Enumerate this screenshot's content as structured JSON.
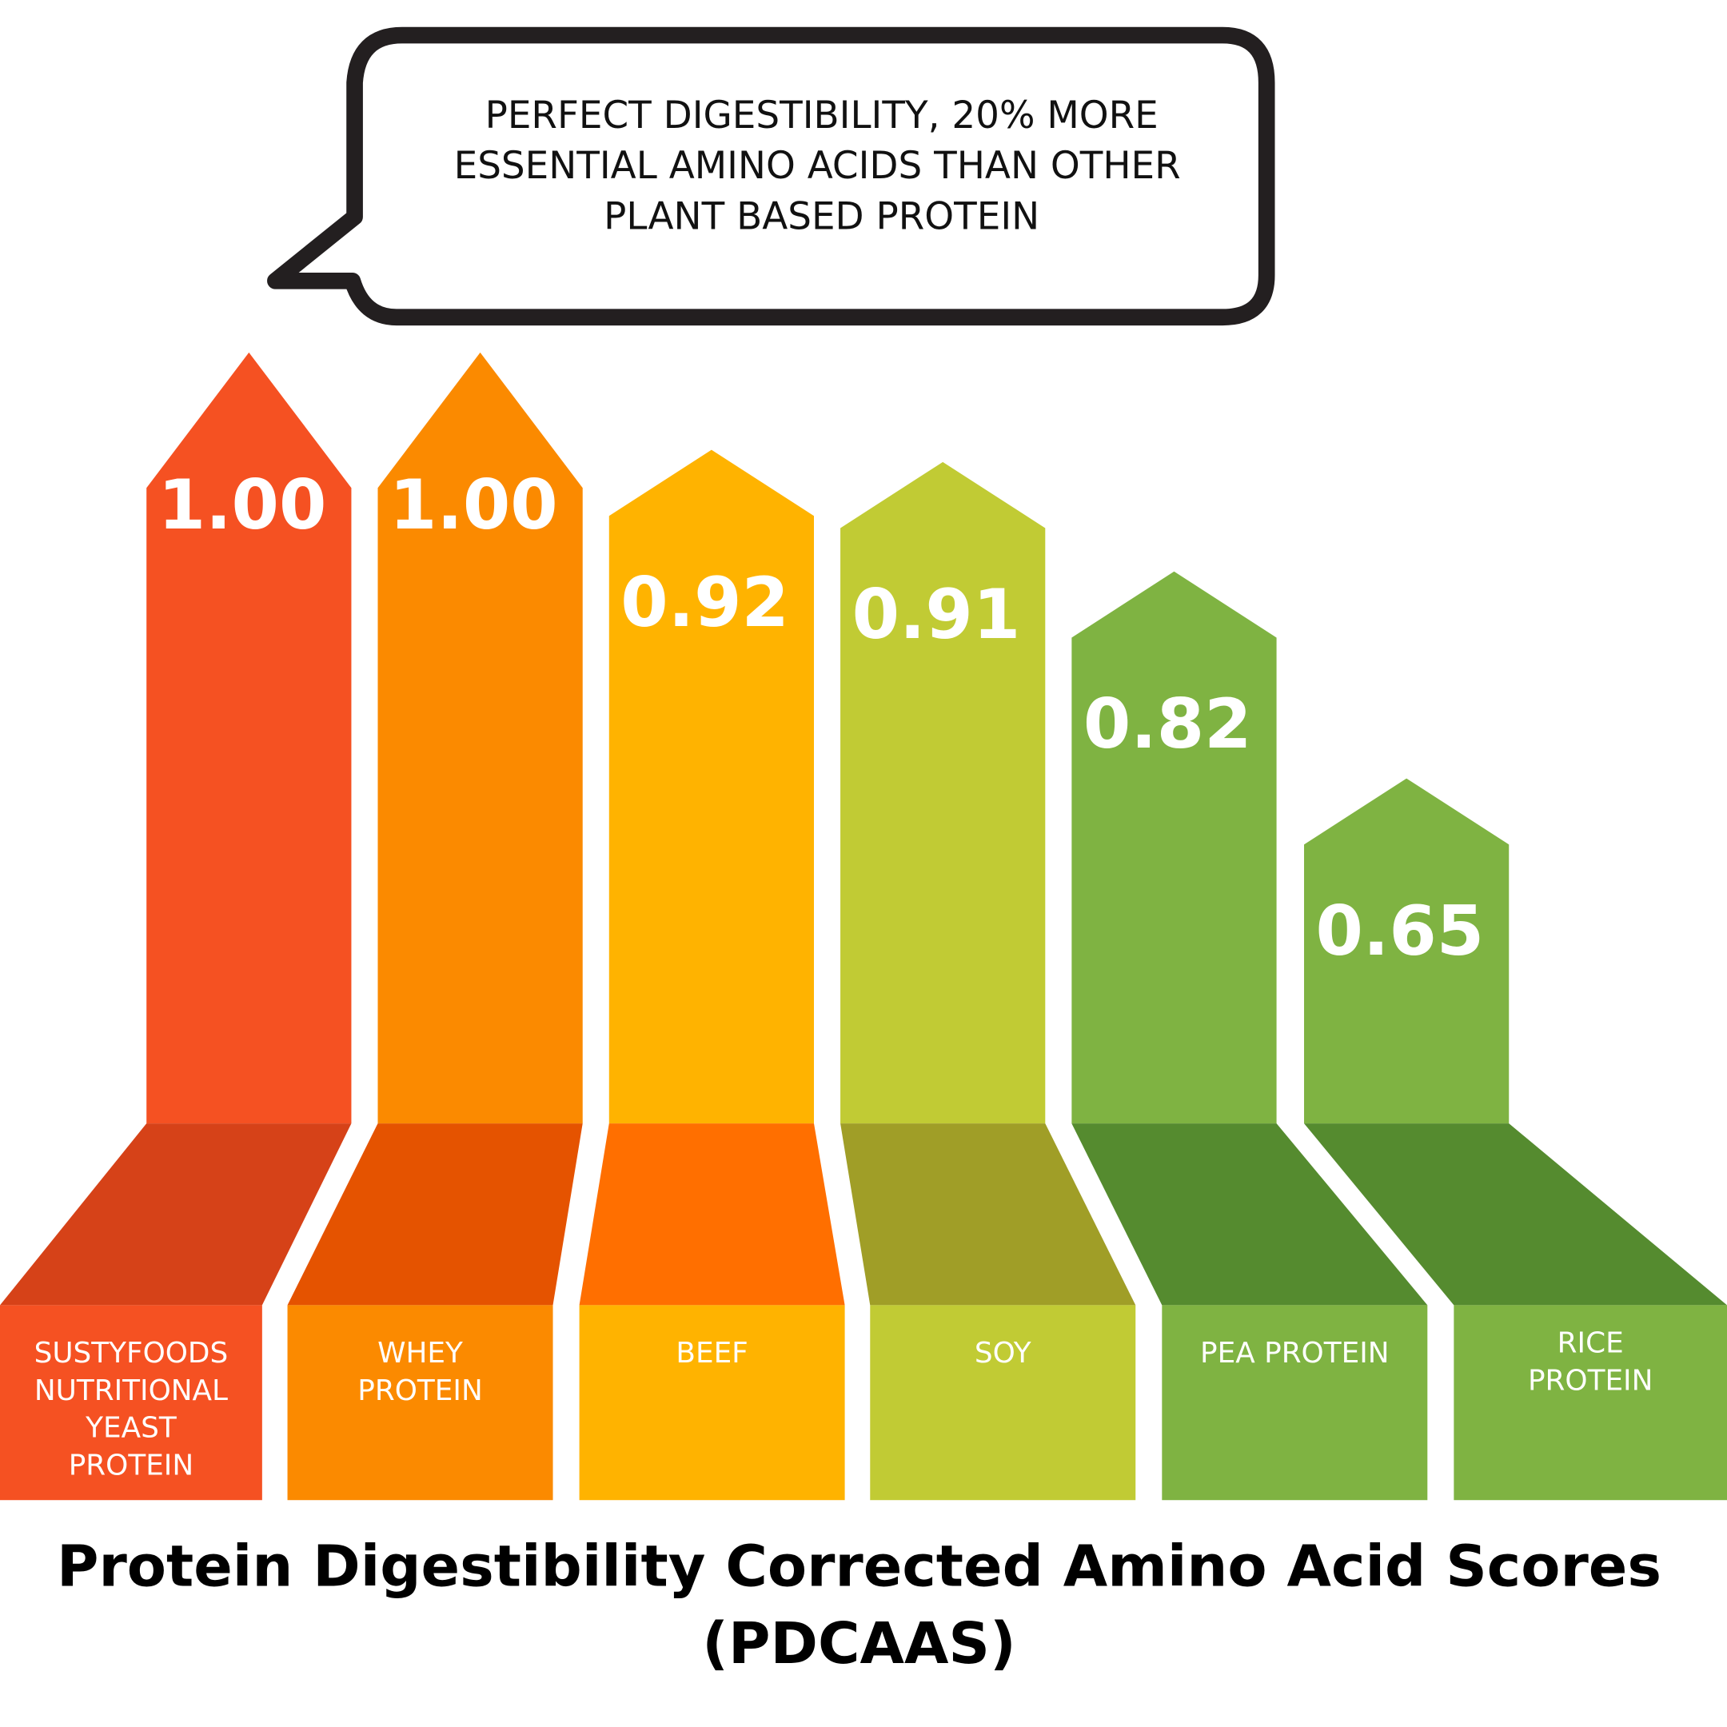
{
  "chart_data": {
    "type": "bar",
    "title": "Protein Digestibility Corrected Amino Acid Scores (PDCAAS)",
    "title_lines": [
      "Protein Digestibility Corrected Amino Acid Scores",
      "(PDCAAS)"
    ],
    "callout_lines": [
      "PERFECT DIGESTIBILITY, 20% MORE",
      "ESSENTIAL AMINO ACIDS THAN OTHER",
      "PLANT BASED PROTEIN"
    ],
    "categories": [
      "SUSTYFOODS NUTRITIONAL YEAST PROTEIN",
      "WHEY PROTEIN",
      "BEEF",
      "SOY",
      "PEA PROTEIN",
      "RICE PROTEIN"
    ],
    "category_lines": [
      [
        "SUSTYFOODS",
        "NUTRITIONAL",
        "YEAST",
        "PROTEIN"
      ],
      [
        "WHEY",
        "PROTEIN"
      ],
      [
        "BEEF"
      ],
      [
        "SOY"
      ],
      [
        "PEA PROTEIN"
      ],
      [
        "RICE",
        "PROTEIN"
      ]
    ],
    "values": [
      1.0,
      1.0,
      0.92,
      0.91,
      0.82,
      0.65
    ],
    "value_labels": [
      "1.00",
      "1.00",
      "0.92",
      "0.91",
      "0.82",
      "0.65"
    ],
    "ylim": [
      0.65,
      1.0
    ],
    "grid": false,
    "colors": {
      "bar": [
        "#F55122",
        "#FB8A00",
        "#FFB300",
        "#C1CB34",
        "#7FB342",
        "#7FB342"
      ],
      "shadow": [
        "#D64218",
        "#E55300",
        "#FF6F00",
        "#A09E27",
        "#558B2F",
        "#558B2F"
      ]
    }
  }
}
